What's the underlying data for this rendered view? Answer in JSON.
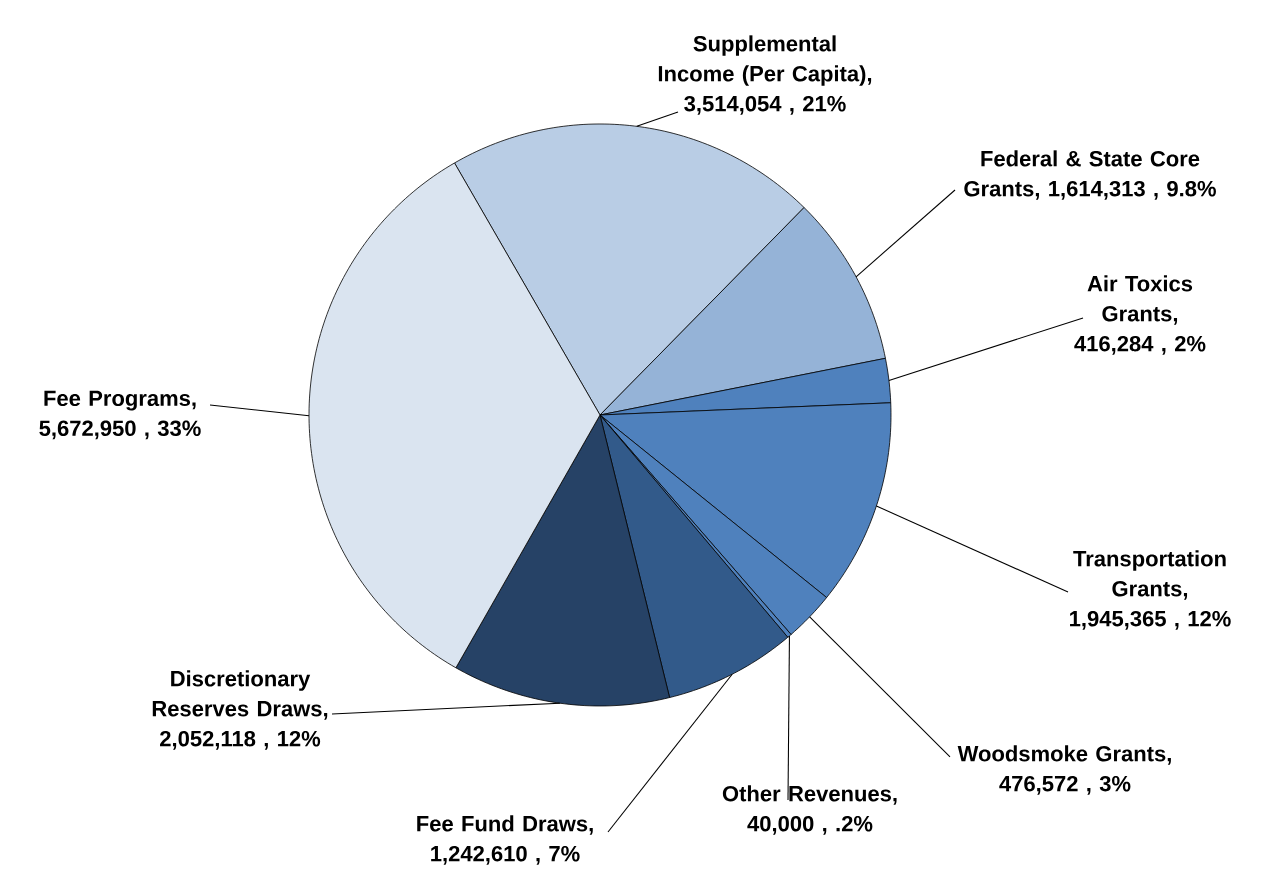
{
  "chart_data": {
    "type": "pie",
    "categories": [
      "Supplemental Income (Per Capita)",
      "Federal & State Core Grants",
      "Air Toxics Grants",
      "Transportation Grants",
      "Woodsmoke Grants",
      "Other Revenues",
      "Fee Fund Draws",
      "Discretionary Reserves Draws",
      "Fee Programs"
    ],
    "values": [
      3514054,
      1614313,
      416284,
      1945365,
      476572,
      40000,
      1242610,
      2052118,
      5672950
    ],
    "value_labels": [
      ", 3,514,054 , 21%",
      ", 1,614,313 , 9.8%",
      ", 416,284 , 2%",
      ", 1,945,365 , 12%",
      ", 476,572 , 3%",
      ", 40,000 , .2%",
      ", 1,242,610 , 7%",
      ", 2,052,118 , 12%",
      ", 5,672,950 , 33%"
    ],
    "colors": [
      "#b9cde5",
      "#95b3d7",
      "#4f81bd",
      "#4f81bd",
      "#4f81bd",
      "#4f81bd",
      "#325a8a",
      "#264266",
      "#dae4f0"
    ]
  }
}
